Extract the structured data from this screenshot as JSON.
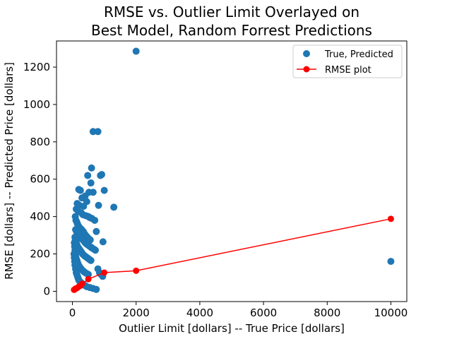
{
  "chart_data": {
    "type": "scatter",
    "title_lines": [
      "RMSE vs. Outlier Limit Overlayed on",
      "Best Model, Random Forrest Predictions"
    ],
    "xlabel": "Outlier Limit [dollars]  --  True Price [dollars]",
    "ylabel": "RMSE [dollars]  --  Predicted Price [dollars]",
    "xlim": [
      -500,
      10500
    ],
    "ylim": [
      -55,
      1340
    ],
    "xticks": [
      0,
      2000,
      4000,
      6000,
      8000,
      10000
    ],
    "yticks": [
      0,
      200,
      400,
      600,
      800,
      1000,
      1200
    ],
    "grid": false,
    "legend_position": "top-right",
    "series": [
      {
        "name": "True, Predicted",
        "kind": "scatter",
        "color": "#1f77b4",
        "x": [
          2000,
          10000,
          650,
          800,
          600,
          880,
          920,
          480,
          1000,
          520,
          1300,
          400,
          450,
          200,
          250,
          300,
          150,
          220,
          350,
          580,
          650,
          820,
          960,
          120,
          180,
          280,
          330,
          420,
          500,
          540,
          610,
          700,
          750,
          90,
          110,
          140,
          160,
          190,
          230,
          260,
          290,
          310,
          340,
          370,
          390,
          410,
          440,
          460,
          490,
          520,
          560,
          100,
          130,
          170,
          210,
          240,
          270,
          300,
          330,
          360,
          380,
          400,
          430,
          470,
          510,
          550,
          590,
          630,
          680,
          720,
          80,
          90,
          100,
          120,
          140,
          160,
          180,
          200,
          220,
          240,
          260,
          280,
          300,
          320,
          350,
          380,
          420,
          460,
          500,
          540,
          580,
          60,
          70,
          80,
          90,
          100,
          110,
          130,
          150,
          170,
          190,
          210,
          230,
          250,
          270,
          300,
          330,
          360,
          400,
          450,
          500,
          50,
          60,
          70,
          80,
          100,
          120,
          140,
          160,
          180,
          200,
          220,
          250,
          280,
          320,
          360,
          400,
          450,
          550,
          650,
          750,
          800,
          850,
          900,
          950
        ],
        "y": [
          1285,
          160,
          855,
          855,
          660,
          620,
          625,
          620,
          540,
          530,
          450,
          510,
          480,
          545,
          540,
          500,
          470,
          460,
          455,
          580,
          530,
          460,
          265,
          440,
          430,
          420,
          410,
          405,
          400,
          395,
          390,
          380,
          320,
          400,
          380,
          370,
          360,
          350,
          340,
          335,
          330,
          325,
          320,
          310,
          305,
          300,
          295,
          290,
          285,
          280,
          275,
          330,
          320,
          310,
          300,
          290,
          285,
          280,
          275,
          270,
          265,
          260,
          255,
          250,
          245,
          240,
          235,
          230,
          225,
          220,
          290,
          280,
          270,
          260,
          250,
          240,
          235,
          230,
          225,
          220,
          215,
          210,
          205,
          200,
          195,
          190,
          185,
          180,
          175,
          170,
          165,
          260,
          240,
          220,
          200,
          190,
          180,
          170,
          160,
          150,
          140,
          135,
          130,
          125,
          120,
          115,
          110,
          105,
          100,
          95,
          90,
          200,
          180,
          160,
          140,
          120,
          100,
          90,
          80,
          70,
          60,
          55,
          50,
          45,
          40,
          35,
          30,
          25,
          20,
          15,
          10,
          120,
          100,
          90,
          80
        ]
      },
      {
        "name": "RMSE plot",
        "kind": "line",
        "color": "#ff0000",
        "x": [
          50,
          75,
          100,
          150,
          200,
          250,
          300,
          500,
          1000,
          2000,
          10000
        ],
        "y": [
          8,
          10,
          15,
          18,
          25,
          30,
          40,
          65,
          100,
          110,
          388
        ]
      }
    ]
  }
}
